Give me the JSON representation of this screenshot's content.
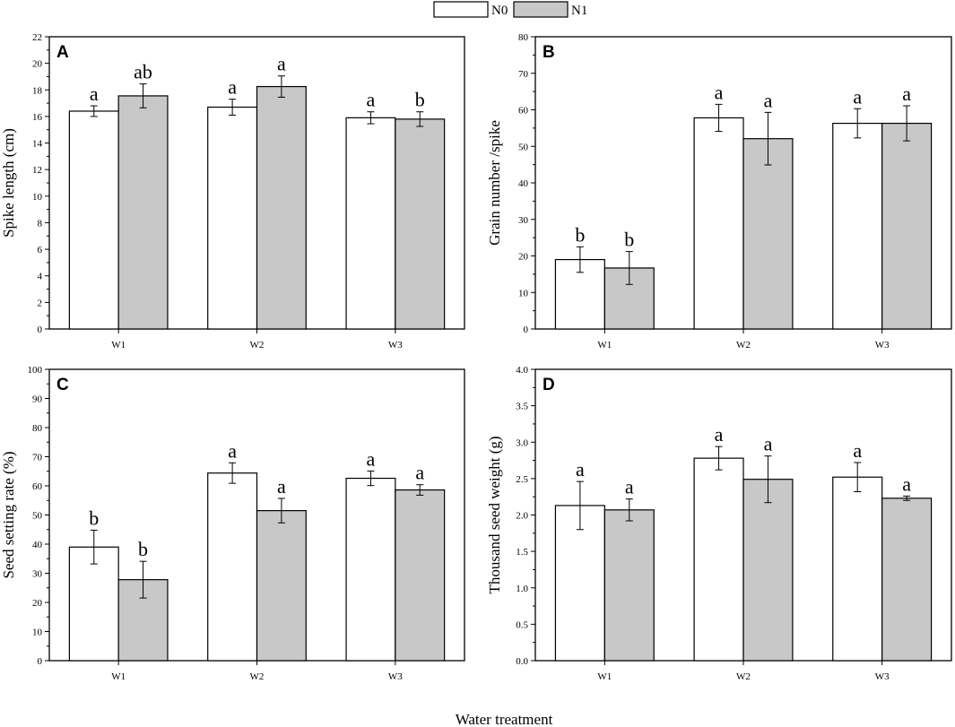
{
  "chart_data": {
    "type": "bar",
    "colors": {
      "N0": "#ffffff",
      "N1": "#c8c8c8",
      "stroke": "#000000"
    },
    "legend": [
      "N0",
      "N1"
    ],
    "xtitle": "Water treatment",
    "panels": [
      {
        "letter": "A",
        "ylabel": "Spike length (cm)",
        "categories": [
          "W1",
          "W2",
          "W3"
        ],
        "ylim": [
          0,
          22
        ],
        "ytick_step": 2,
        "ytick_labels": [
          "0",
          "2",
          "4",
          "6",
          "8",
          "10",
          "12",
          "14",
          "16",
          "18",
          "20",
          "22"
        ],
        "series": [
          {
            "name": "N0",
            "values": [
              16.4,
              16.7,
              15.9
            ],
            "errors": [
              0.4,
              0.6,
              0.45
            ],
            "labels": [
              "a",
              "a",
              "a"
            ]
          },
          {
            "name": "N1",
            "values": [
              17.55,
              18.25,
              15.8
            ],
            "errors": [
              0.9,
              0.8,
              0.55
            ],
            "labels": [
              "ab",
              "a",
              "b"
            ]
          }
        ]
      },
      {
        "letter": "B",
        "ylabel": "Grain number /spike",
        "categories": [
          "W1",
          "W2",
          "W3"
        ],
        "ylim": [
          0,
          80
        ],
        "ytick_step": 10,
        "ytick_labels": [
          "0",
          "10",
          "20",
          "30",
          "40",
          "50",
          "60",
          "70",
          "80"
        ],
        "series": [
          {
            "name": "N0",
            "values": [
              19,
              57.8,
              56.3
            ],
            "errors": [
              3.5,
              3.7,
              4.0
            ],
            "labels": [
              "b",
              "a",
              "a"
            ]
          },
          {
            "name": "N1",
            "values": [
              16.7,
              52.1,
              56.3
            ],
            "errors": [
              4.5,
              7.2,
              4.8
            ],
            "labels": [
              "b",
              "a",
              "a"
            ]
          }
        ]
      },
      {
        "letter": "C",
        "ylabel": "Seed setting rate (%)",
        "categories": [
          "W1",
          "W2",
          "W3"
        ],
        "ylim": [
          0,
          100
        ],
        "ytick_step": 10,
        "ytick_labels": [
          "0",
          "10",
          "20",
          "30",
          "40",
          "50",
          "60",
          "70",
          "80",
          "90",
          "100"
        ],
        "series": [
          {
            "name": "N0",
            "values": [
              39,
              64.4,
              62.6
            ],
            "errors": [
              5.8,
              3.5,
              2.5
            ],
            "labels": [
              "b",
              "a",
              "a"
            ]
          },
          {
            "name": "N1",
            "values": [
              27.8,
              51.5,
              58.6
            ],
            "errors": [
              6.3,
              4.2,
              1.8
            ],
            "labels": [
              "b",
              "a",
              "a"
            ]
          }
        ]
      },
      {
        "letter": "D",
        "ylabel": "Thousand seed weight (g)",
        "categories": [
          "W1",
          "W2",
          "W3"
        ],
        "ylim": [
          0,
          4
        ],
        "ytick_step": 0.5,
        "ytick_labels": [
          "0.0",
          "0.5",
          "1.0",
          "1.5",
          "2.0",
          "2.5",
          "3.0",
          "3.5",
          "4.0"
        ],
        "series": [
          {
            "name": "N0",
            "values": [
              2.13,
              2.78,
              2.52
            ],
            "errors": [
              0.33,
              0.16,
              0.2
            ],
            "labels": [
              "a",
              "a",
              "a"
            ]
          },
          {
            "name": "N1",
            "values": [
              2.07,
              2.49,
              2.23
            ],
            "errors": [
              0.15,
              0.32,
              0.03
            ],
            "labels": [
              "a",
              "a",
              "a"
            ]
          }
        ]
      }
    ]
  }
}
